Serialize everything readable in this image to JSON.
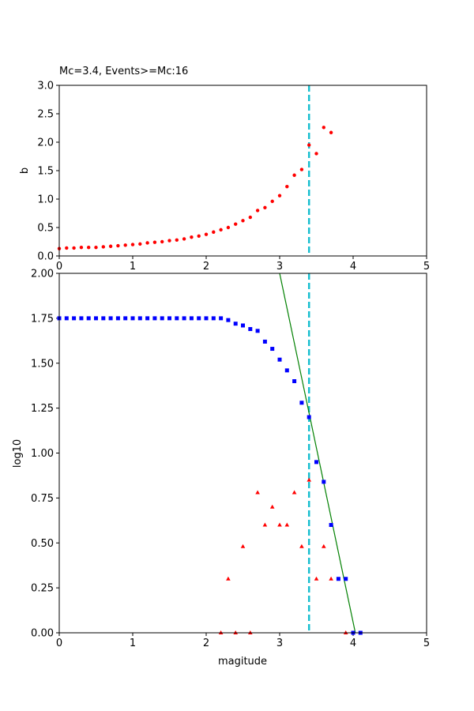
{
  "chart_data": [
    {
      "type": "scatter",
      "title": "Mc=3.4, Events>=Mc:16",
      "xlabel": "",
      "ylabel": "b",
      "xlim": [
        0,
        5
      ],
      "ylim": [
        0,
        3
      ],
      "xticks": [
        "0",
        "1",
        "2",
        "3",
        "4",
        "5"
      ],
      "yticks": [
        "0.0",
        "0.5",
        "1.0",
        "1.5",
        "2.0",
        "2.5",
        "3.0"
      ],
      "colors": {
        "points": "#ff0000",
        "mc_line": "#17becf"
      },
      "mc": 3.4,
      "series": [
        {
          "name": "b-value",
          "marker": "circle",
          "x": [
            0.0,
            0.1,
            0.2,
            0.3,
            0.4,
            0.5,
            0.6,
            0.7,
            0.8,
            0.9,
            1.0,
            1.1,
            1.2,
            1.3,
            1.4,
            1.5,
            1.6,
            1.7,
            1.8,
            1.9,
            2.0,
            2.1,
            2.2,
            2.3,
            2.4,
            2.5,
            2.6,
            2.7,
            2.8,
            2.9,
            3.0,
            3.1,
            3.2,
            3.3,
            3.4,
            3.5,
            3.6,
            3.7
          ],
          "y": [
            0.13,
            0.14,
            0.14,
            0.15,
            0.15,
            0.15,
            0.16,
            0.17,
            0.18,
            0.19,
            0.2,
            0.21,
            0.23,
            0.24,
            0.25,
            0.27,
            0.28,
            0.3,
            0.33,
            0.35,
            0.38,
            0.42,
            0.46,
            0.5,
            0.56,
            0.62,
            0.68,
            0.8,
            0.85,
            0.96,
            1.06,
            1.22,
            1.42,
            1.52,
            1.95,
            1.8,
            2.26,
            2.17
          ]
        }
      ]
    },
    {
      "type": "scatter",
      "title": "",
      "xlabel": "magitude",
      "ylabel": "log10",
      "xlim": [
        0,
        5
      ],
      "ylim": [
        0,
        2
      ],
      "xticks": [
        "0",
        "1",
        "2",
        "3",
        "4",
        "5"
      ],
      "yticks": [
        "0.00",
        "0.25",
        "0.50",
        "0.75",
        "1.00",
        "1.25",
        "1.50",
        "1.75",
        "2.00"
      ],
      "colors": {
        "cumulative": "#0000ff",
        "noncumulative": "#ff0000",
        "fit": "#008000",
        "mc_line": "#17becf"
      },
      "mc": 3.4,
      "series": [
        {
          "name": "cumulative",
          "marker": "square",
          "x": [
            0.0,
            0.1,
            0.2,
            0.3,
            0.4,
            0.5,
            0.6,
            0.7,
            0.8,
            0.9,
            1.0,
            1.1,
            1.2,
            1.3,
            1.4,
            1.5,
            1.6,
            1.7,
            1.8,
            1.9,
            2.0,
            2.1,
            2.2,
            2.3,
            2.4,
            2.5,
            2.6,
            2.7,
            2.8,
            2.9,
            3.0,
            3.1,
            3.2,
            3.3,
            3.4,
            3.5,
            3.6,
            3.7,
            3.8,
            3.9,
            4.0,
            4.1
          ],
          "y": [
            1.75,
            1.75,
            1.75,
            1.75,
            1.75,
            1.75,
            1.75,
            1.75,
            1.75,
            1.75,
            1.75,
            1.75,
            1.75,
            1.75,
            1.75,
            1.75,
            1.75,
            1.75,
            1.75,
            1.75,
            1.75,
            1.75,
            1.75,
            1.74,
            1.72,
            1.71,
            1.69,
            1.68,
            1.62,
            1.58,
            1.52,
            1.46,
            1.4,
            1.28,
            1.2,
            0.95,
            0.84,
            0.6,
            0.3,
            0.3,
            0.0,
            0.0
          ]
        },
        {
          "name": "non-cumulative",
          "marker": "triangle",
          "x": [
            2.2,
            2.3,
            2.4,
            2.5,
            2.6,
            2.7,
            2.8,
            2.9,
            3.0,
            3.1,
            3.2,
            3.3,
            3.4,
            3.5,
            3.6,
            3.7,
            3.9
          ],
          "y": [
            0.0,
            0.3,
            0.0,
            0.48,
            0.0,
            0.78,
            0.6,
            0.7,
            0.6,
            0.6,
            0.78,
            0.48,
            0.85,
            0.3,
            0.48,
            0.3,
            0.0
          ]
        },
        {
          "name": "fit",
          "marker": "line",
          "x": [
            3.0,
            4.03
          ],
          "y": [
            2.0,
            0.0
          ]
        }
      ]
    }
  ]
}
